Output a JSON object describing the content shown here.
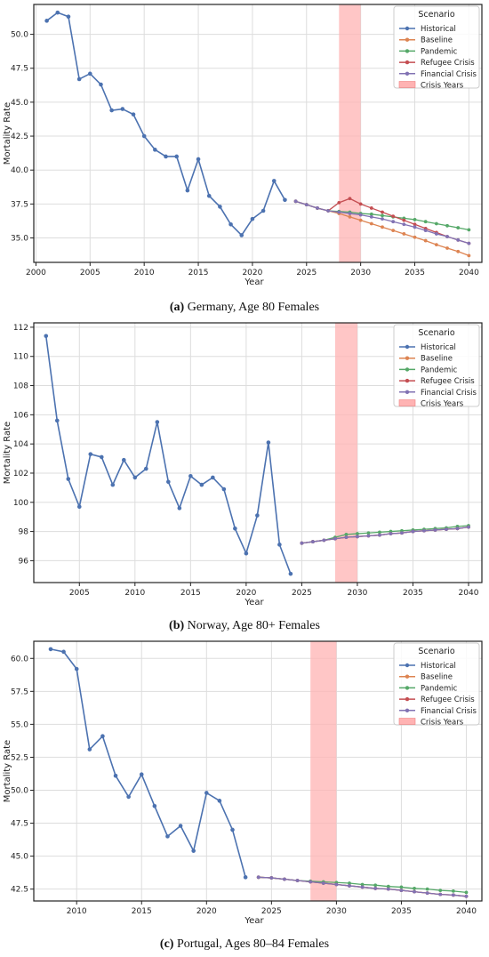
{
  "legend_title": "Scenario",
  "legend_entries": [
    "Historical",
    "Baseline",
    "Pandemic",
    "Refugee Crisis",
    "Financial Crisis",
    "Crisis Years"
  ],
  "colors": {
    "Historical": "#4c72b0",
    "Baseline": "#dd8452",
    "Pandemic": "#55a868",
    "Refugee Crisis": "#c44e52",
    "Financial Crisis": "#8172b3",
    "Crisis Years": "#ffb3b3"
  },
  "chart_data": [
    {
      "type": "line",
      "caption_letter": "(a)",
      "caption_text": "Germany, Age 80 Females",
      "xlabel": "Year",
      "ylabel": "Mortality Rate",
      "xlim": [
        1999.8,
        2041.2
      ],
      "ylim": [
        33.2,
        52.2
      ],
      "xticks": [
        2000,
        2005,
        2010,
        2015,
        2020,
        2025,
        2030,
        2035,
        2040
      ],
      "yticks": [
        35.0,
        37.5,
        40.0,
        42.5,
        45.0,
        47.5,
        50.0
      ],
      "ytick_labels": [
        "35.0",
        "37.5",
        "40.0",
        "42.5",
        "45.0",
        "47.5",
        "50.0"
      ],
      "crisis_band": [
        2028,
        2030
      ],
      "series": [
        {
          "name": "Historical",
          "x": [
            2001,
            2002,
            2003,
            2004,
            2005,
            2006,
            2007,
            2008,
            2009,
            2010,
            2011,
            2012,
            2013,
            2014,
            2015,
            2016,
            2017,
            2018,
            2019,
            2020,
            2021,
            2022,
            2023
          ],
          "y": [
            51.0,
            51.6,
            51.3,
            46.7,
            47.1,
            46.3,
            44.4,
            44.5,
            44.1,
            42.5,
            41.5,
            41.0,
            41.0,
            38.5,
            40.8,
            38.1,
            37.3,
            36.0,
            35.2,
            36.4,
            37.0,
            39.2,
            37.8
          ]
        },
        {
          "name": "Baseline",
          "x": [
            2024,
            2025,
            2026,
            2027,
            2028,
            2029,
            2030,
            2031,
            2032,
            2033,
            2034,
            2035,
            2036,
            2037,
            2038,
            2039,
            2040
          ],
          "y": [
            37.7,
            37.45,
            37.2,
            37.0,
            36.8,
            36.55,
            36.3,
            36.05,
            35.8,
            35.55,
            35.3,
            35.05,
            34.8,
            34.5,
            34.25,
            34.0,
            33.7
          ]
        },
        {
          "name": "Pandemic",
          "x": [
            2024,
            2025,
            2026,
            2027,
            2028,
            2029,
            2030,
            2031,
            2032,
            2033,
            2034,
            2035,
            2036,
            2037,
            2038,
            2039,
            2040
          ],
          "y": [
            37.7,
            37.45,
            37.2,
            37.0,
            36.95,
            36.9,
            36.8,
            36.75,
            36.65,
            36.55,
            36.45,
            36.35,
            36.2,
            36.05,
            35.9,
            35.75,
            35.6
          ]
        },
        {
          "name": "Refugee Crisis",
          "x": [
            2024,
            2025,
            2026,
            2027,
            2028,
            2029,
            2030,
            2031,
            2032,
            2033,
            2034,
            2035,
            2036,
            2037,
            2038,
            2039,
            2040
          ],
          "y": [
            37.7,
            37.45,
            37.2,
            37.0,
            37.6,
            37.9,
            37.5,
            37.2,
            36.9,
            36.6,
            36.3,
            36.0,
            35.7,
            35.4,
            35.1,
            34.85,
            34.6
          ]
        },
        {
          "name": "Financial Crisis",
          "x": [
            2024,
            2025,
            2026,
            2027,
            2028,
            2029,
            2030,
            2031,
            2032,
            2033,
            2034,
            2035,
            2036,
            2037,
            2038,
            2039,
            2040
          ],
          "y": [
            37.7,
            37.45,
            37.2,
            37.0,
            36.9,
            36.8,
            36.7,
            36.55,
            36.4,
            36.2,
            36.0,
            35.8,
            35.55,
            35.3,
            35.1,
            34.85,
            34.6
          ]
        }
      ]
    },
    {
      "type": "line",
      "caption_letter": "(b)",
      "caption_text": "Norway, Age 80+ Females",
      "xlabel": "Year",
      "ylabel": "Mortality Rate",
      "xlim": [
        2000.9,
        2041.2
      ],
      "ylim": [
        94.5,
        112.3
      ],
      "xticks": [
        2005,
        2010,
        2015,
        2020,
        2025,
        2030,
        2035,
        2040
      ],
      "yticks": [
        96,
        98,
        100,
        102,
        104,
        106,
        108,
        110,
        112
      ],
      "ytick_labels": [
        "96",
        "98",
        "100",
        "102",
        "104",
        "106",
        "108",
        "110",
        "112"
      ],
      "crisis_band": [
        2028,
        2030
      ],
      "series": [
        {
          "name": "Historical",
          "x": [
            2002,
            2003,
            2004,
            2005,
            2006,
            2007,
            2008,
            2009,
            2010,
            2011,
            2012,
            2013,
            2014,
            2015,
            2016,
            2017,
            2018,
            2019,
            2020,
            2021,
            2022,
            2023,
            2024
          ],
          "y": [
            111.4,
            105.6,
            101.6,
            99.7,
            103.3,
            103.1,
            101.2,
            102.9,
            101.7,
            102.3,
            105.5,
            101.4,
            99.6,
            101.8,
            101.2,
            101.7,
            100.9,
            98.2,
            96.5,
            99.1,
            104.1,
            97.1,
            95.1
          ]
        },
        {
          "name": "Baseline",
          "x": [
            2025,
            2026,
            2027,
            2028,
            2029,
            2030,
            2031,
            2032,
            2033,
            2034,
            2035,
            2036,
            2037,
            2038,
            2039,
            2040
          ],
          "y": [
            97.2,
            97.3,
            97.4,
            97.5,
            97.6,
            97.65,
            97.7,
            97.75,
            97.85,
            97.9,
            98.0,
            98.05,
            98.1,
            98.15,
            98.2,
            98.3
          ]
        },
        {
          "name": "Pandemic",
          "x": [
            2025,
            2026,
            2027,
            2028,
            2029,
            2030,
            2031,
            2032,
            2033,
            2034,
            2035,
            2036,
            2037,
            2038,
            2039,
            2040
          ],
          "y": [
            97.2,
            97.3,
            97.4,
            97.6,
            97.8,
            97.85,
            97.9,
            97.95,
            98.0,
            98.05,
            98.1,
            98.15,
            98.2,
            98.25,
            98.35,
            98.4
          ]
        },
        {
          "name": "Refugee Crisis",
          "x": [
            2025,
            2026,
            2027,
            2028,
            2029,
            2030,
            2031,
            2032,
            2033,
            2034,
            2035,
            2036,
            2037,
            2038,
            2039,
            2040
          ],
          "y": [
            97.2,
            97.3,
            97.4,
            97.5,
            97.6,
            97.65,
            97.7,
            97.75,
            97.85,
            97.9,
            98.0,
            98.05,
            98.1,
            98.15,
            98.2,
            98.3
          ]
        },
        {
          "name": "Financial Crisis",
          "x": [
            2025,
            2026,
            2027,
            2028,
            2029,
            2030,
            2031,
            2032,
            2033,
            2034,
            2035,
            2036,
            2037,
            2038,
            2039,
            2040
          ],
          "y": [
            97.2,
            97.3,
            97.4,
            97.5,
            97.6,
            97.65,
            97.7,
            97.75,
            97.85,
            97.9,
            98.0,
            98.05,
            98.1,
            98.15,
            98.2,
            98.3
          ]
        }
      ]
    },
    {
      "type": "line",
      "caption_letter": "(c)",
      "caption_text": "Portugal, Ages 80–84 Females",
      "xlabel": "Year",
      "ylabel": "Mortality Rate",
      "xlim": [
        2006.7,
        2041.2
      ],
      "ylim": [
        41.6,
        61.3
      ],
      "xticks": [
        2010,
        2015,
        2020,
        2025,
        2030,
        2035,
        2040
      ],
      "yticks": [
        42.5,
        45.0,
        47.5,
        50.0,
        52.5,
        55.0,
        57.5,
        60.0
      ],
      "ytick_labels": [
        "42.5",
        "45.0",
        "47.5",
        "50.0",
        "52.5",
        "55.0",
        "57.5",
        "60.0"
      ],
      "crisis_band": [
        2028,
        2030
      ],
      "series": [
        {
          "name": "Historical",
          "x": [
            2008,
            2009,
            2010,
            2011,
            2012,
            2013,
            2014,
            2015,
            2016,
            2017,
            2018,
            2019,
            2020,
            2021,
            2022,
            2023
          ],
          "y": [
            60.7,
            60.5,
            59.2,
            53.1,
            54.1,
            51.1,
            49.5,
            51.2,
            48.8,
            46.5,
            47.3,
            45.4,
            49.8,
            49.2,
            47.0,
            43.4
          ]
        },
        {
          "name": "Baseline",
          "x": [
            2024,
            2025,
            2026,
            2027,
            2028,
            2029,
            2030,
            2031,
            2032,
            2033,
            2034,
            2035,
            2036,
            2037,
            2038,
            2039,
            2040
          ],
          "y": [
            43.4,
            43.35,
            43.25,
            43.15,
            43.05,
            42.95,
            42.85,
            42.75,
            42.65,
            42.55,
            42.5,
            42.4,
            42.3,
            42.2,
            42.1,
            42.05,
            41.95
          ]
        },
        {
          "name": "Pandemic",
          "x": [
            2024,
            2025,
            2026,
            2027,
            2028,
            2029,
            2030,
            2031,
            2032,
            2033,
            2034,
            2035,
            2036,
            2037,
            2038,
            2039,
            2040
          ],
          "y": [
            43.4,
            43.35,
            43.25,
            43.15,
            43.1,
            43.05,
            43.0,
            42.95,
            42.85,
            42.8,
            42.7,
            42.65,
            42.55,
            42.5,
            42.4,
            42.35,
            42.25
          ]
        },
        {
          "name": "Refugee Crisis",
          "x": [
            2024,
            2025,
            2026,
            2027,
            2028,
            2029,
            2030,
            2031,
            2032,
            2033,
            2034,
            2035,
            2036,
            2037,
            2038,
            2039,
            2040
          ],
          "y": [
            43.4,
            43.35,
            43.25,
            43.15,
            43.05,
            42.95,
            42.85,
            42.75,
            42.65,
            42.55,
            42.5,
            42.4,
            42.3,
            42.2,
            42.1,
            42.05,
            41.95
          ]
        },
        {
          "name": "Financial Crisis",
          "x": [
            2024,
            2025,
            2026,
            2027,
            2028,
            2029,
            2030,
            2031,
            2032,
            2033,
            2034,
            2035,
            2036,
            2037,
            2038,
            2039,
            2040
          ],
          "y": [
            43.4,
            43.35,
            43.25,
            43.15,
            43.05,
            42.95,
            42.85,
            42.75,
            42.65,
            42.55,
            42.5,
            42.4,
            42.3,
            42.2,
            42.1,
            42.05,
            41.95
          ]
        }
      ]
    }
  ]
}
